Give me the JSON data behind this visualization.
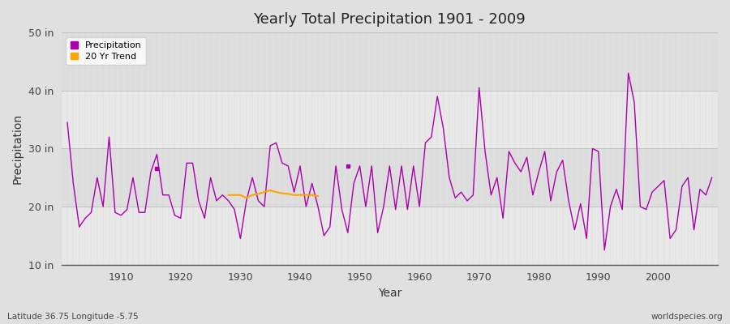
{
  "title": "Yearly Total Precipitation 1901 - 2009",
  "xlabel": "Year",
  "ylabel": "Precipitation",
  "fig_bg_color": "#e0e0e0",
  "plot_bg_color": "#e8e8e8",
  "band_color_light": "#ebebeb",
  "band_color_dark": "#d8d8d8",
  "grid_color": "#cccccc",
  "line_color": "#aa00aa",
  "trend_color": "#FFA500",
  "ylim": [
    10,
    50
  ],
  "yticks": [
    10,
    20,
    30,
    40,
    50
  ],
  "ytick_labels": [
    "10 in",
    "20 in",
    "30 in",
    "40 in",
    "50 in"
  ],
  "footer_left": "Latitude 36.75 Longitude -5.75",
  "footer_right": "worldspecies.org",
  "years": [
    1901,
    1902,
    1903,
    1904,
    1905,
    1906,
    1907,
    1908,
    1909,
    1910,
    1911,
    1912,
    1913,
    1914,
    1915,
    1916,
    1917,
    1918,
    1919,
    1920,
    1921,
    1922,
    1923,
    1924,
    1925,
    1926,
    1927,
    1928,
    1929,
    1930,
    1931,
    1932,
    1933,
    1934,
    1935,
    1936,
    1937,
    1938,
    1939,
    1940,
    1941,
    1942,
    1943,
    1944,
    1945,
    1946,
    1947,
    1948,
    1949,
    1950,
    1951,
    1952,
    1953,
    1954,
    1955,
    1956,
    1957,
    1958,
    1959,
    1960,
    1961,
    1962,
    1963,
    1964,
    1965,
    1966,
    1967,
    1968,
    1969,
    1970,
    1971,
    1972,
    1973,
    1974,
    1975,
    1976,
    1977,
    1978,
    1979,
    1980,
    1981,
    1982,
    1983,
    1984,
    1985,
    1986,
    1987,
    1988,
    1989,
    1990,
    1991,
    1992,
    1993,
    1994,
    1995,
    1996,
    1997,
    1998,
    1999,
    2000,
    2001,
    2002,
    2003,
    2004,
    2005,
    2006,
    2007,
    2008,
    2009
  ],
  "precip": [
    34.5,
    24.0,
    16.5,
    18.0,
    19.0,
    25.0,
    20.0,
    32.0,
    19.0,
    18.5,
    19.5,
    25.0,
    19.0,
    19.0,
    26.0,
    29.0,
    22.0,
    22.0,
    18.5,
    18.0,
    27.5,
    27.5,
    21.0,
    18.0,
    25.0,
    21.0,
    22.0,
    21.0,
    19.5,
    14.5,
    21.0,
    25.0,
    21.0,
    20.0,
    30.5,
    31.0,
    27.5,
    27.0,
    22.5,
    27.0,
    20.0,
    24.0,
    20.0,
    15.0,
    16.5,
    27.0,
    19.5,
    15.5,
    24.0,
    27.0,
    20.0,
    27.0,
    15.5,
    20.0,
    27.0,
    19.5,
    27.0,
    19.5,
    27.0,
    20.0,
    31.0,
    32.0,
    39.0,
    33.5,
    25.0,
    21.5,
    22.5,
    21.0,
    22.0,
    40.5,
    29.5,
    22.0,
    25.0,
    18.0,
    29.5,
    27.5,
    26.0,
    28.5,
    22.0,
    26.0,
    29.5,
    21.0,
    26.0,
    28.0,
    21.0,
    16.0,
    20.5,
    14.5,
    30.0,
    29.5,
    12.5,
    20.0,
    23.0,
    19.5,
    43.0,
    38.0,
    20.0,
    19.5,
    22.5,
    23.5,
    24.5,
    14.5,
    16.0,
    23.5,
    25.0,
    16.0,
    23.0,
    22.0,
    25.0
  ],
  "trend_years": [
    1928,
    1929,
    1930,
    1931,
    1932,
    1933,
    1934,
    1935,
    1936,
    1937,
    1938,
    1939,
    1940,
    1941,
    1942,
    1943
  ],
  "trend_values": [
    22.0,
    22.0,
    22.0,
    21.5,
    22.0,
    22.2,
    22.5,
    22.8,
    22.5,
    22.3,
    22.2,
    22.0,
    22.0,
    22.0,
    22.0,
    21.8
  ],
  "isolated_points": [
    [
      1916,
      26.5
    ],
    [
      1948,
      27.0
    ]
  ],
  "legend_labels": [
    "Precipitation",
    "20 Yr Trend"
  ]
}
